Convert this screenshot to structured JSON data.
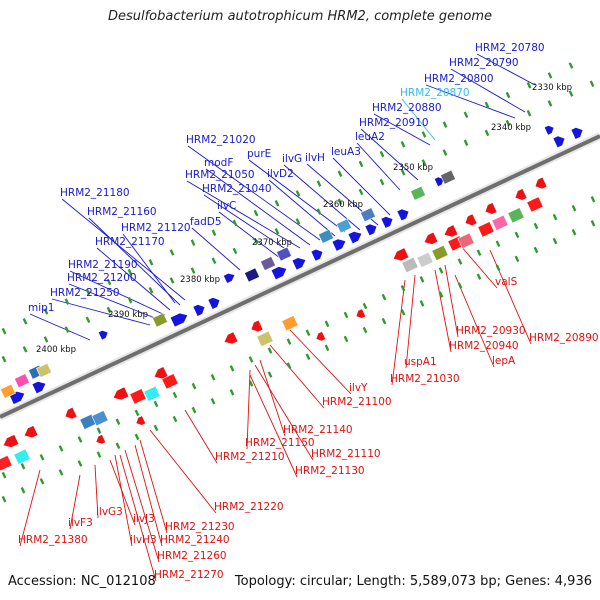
{
  "title": "Desulfobacterium autotrophicum HRM2, complete genome",
  "accession": "Accession: NC_012108",
  "topology": "Topology: circular; Length: 5,589,073 bp; Genes: 4,936",
  "colors": {
    "forward_label": "#1a1acc",
    "reverse_label": "#e01010",
    "highlight_label": "#33bbee",
    "backbone": "#808080",
    "tick": "#2d9b2d"
  },
  "kbp_ticks": [
    "2330 kbp",
    "2340 kbp",
    "2350 kbp",
    "2360 kbp",
    "2370 kbp",
    "2380 kbp",
    "2390 kbp",
    "2400 kbp"
  ],
  "forward_genes": [
    "HRM2_20780",
    "HRM2_20790",
    "HRM2_20800",
    "HRM2_20870",
    "HRM2_20880",
    "HRM2_20910",
    "leuA2",
    "leuA3",
    "ilvH",
    "ilvG",
    "purE",
    "ilvD2",
    "HRM2_21020",
    "modF",
    "HRM2_21050",
    "HRM2_21040",
    "ilvC",
    "fadD5",
    "HRM2_21180",
    "HRM2_21160",
    "HRM2_21120",
    "HRM2_21170",
    "HRM2_21190",
    "HRM2_21200",
    "HRM2_21250",
    "mip1"
  ],
  "reverse_genes": [
    "valS",
    "HRM2_20890",
    "HRM2_20930",
    "HRM2_20940",
    "lepA",
    "uspA1",
    "HRM2_21030",
    "ilvY",
    "HRM2_21100",
    "HRM2_21140",
    "HRM2_21110",
    "HRM2_21150",
    "HRM2_21130",
    "HRM2_21210",
    "HRM2_21220",
    "HRM2_21230",
    "HRM2_21240",
    "HRM2_21260",
    "HRM2_21270",
    "ilvH3",
    "ilvJ3",
    "ilvG3",
    "ilvF3",
    "HRM2_21380"
  ]
}
